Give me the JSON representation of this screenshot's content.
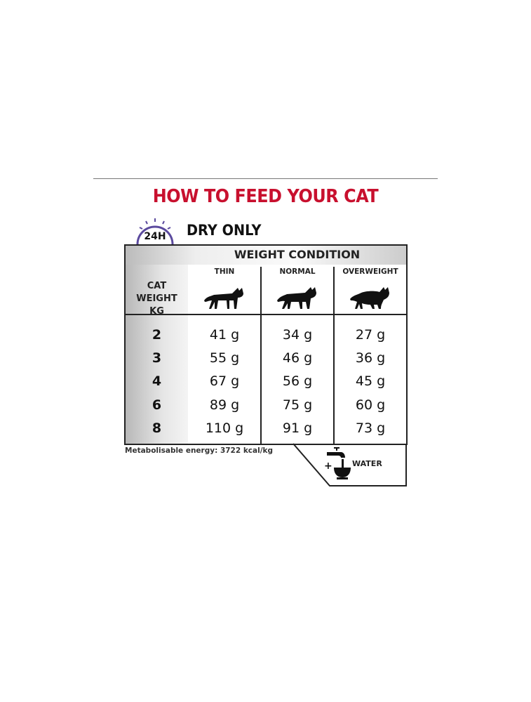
{
  "title": "HOW TO FEED YOUR CAT",
  "badge": "24H",
  "mode": "DRY ONLY",
  "table": {
    "group_header": "WEIGHT CONDITION",
    "weight_header": [
      "CAT",
      "WEIGHT",
      "KG"
    ],
    "columns": [
      {
        "label": "THIN",
        "icon": "thin-cat-icon"
      },
      {
        "label": "NORMAL",
        "icon": "normal-cat-icon"
      },
      {
        "label": "OVERWEIGHT",
        "icon": "overweight-cat-icon"
      }
    ],
    "rows": [
      {
        "kg": "2",
        "thin": "41 g",
        "normal": "34 g",
        "overweight": "27 g"
      },
      {
        "kg": "3",
        "thin": "55 g",
        "normal": "46 g",
        "overweight": "36 g"
      },
      {
        "kg": "4",
        "thin": "67 g",
        "normal": "56 g",
        "overweight": "45 g"
      },
      {
        "kg": "6",
        "thin": "89 g",
        "normal": "75 g",
        "overweight": "60 g"
      },
      {
        "kg": "8",
        "thin": "110 g",
        "normal": "91 g",
        "overweight": "73 g"
      }
    ]
  },
  "energy": "Metabolisable energy: 3722 kcal/kg",
  "water": {
    "plus": "+",
    "label": "WATER",
    "icon": "water-tap-bowl-icon"
  },
  "colors": {
    "title": "#c8102e",
    "clock": "#5b4a9e"
  }
}
